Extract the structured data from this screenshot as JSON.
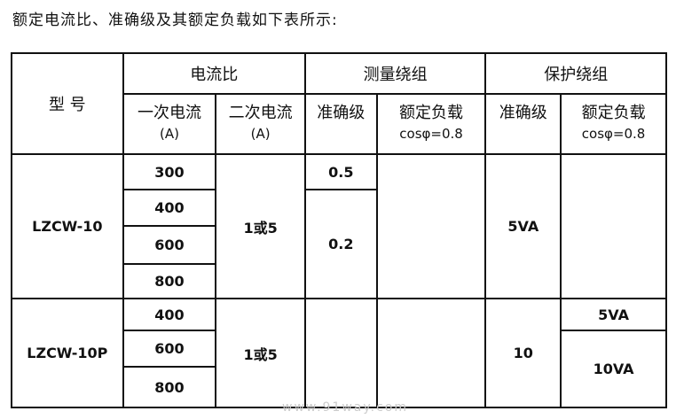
{
  "caption": "额定电流比、准确级及其额定负载如下表所示:",
  "header": {
    "model": "型 号",
    "current_ratio": "电流比",
    "measure_winding": "测量绕组",
    "protect_winding": "保护绕组",
    "primary": "一次电流",
    "primary_unit": "(A)",
    "secondary": "二次电流",
    "secondary_unit": "(A)",
    "accuracy": "准确级",
    "rated_load": "额定负载",
    "cos": "cosφ=0.8"
  },
  "groups": [
    {
      "model": "LZCW-10",
      "primary": [
        "300",
        "400",
        "600",
        "800"
      ],
      "secondary": "1或5",
      "measure_accuracy": [
        "0.5",
        "0.2"
      ],
      "protect_accuracy": "5VA",
      "protect_load": ""
    },
    {
      "model": "LZCW-10P",
      "primary": [
        "400",
        "600",
        "800"
      ],
      "secondary": "1或5",
      "measure_accuracy": "",
      "protect_accuracy": "10",
      "protect_load": [
        "5VA",
        "10VA"
      ]
    }
  ],
  "watermark": "www.91way.com"
}
